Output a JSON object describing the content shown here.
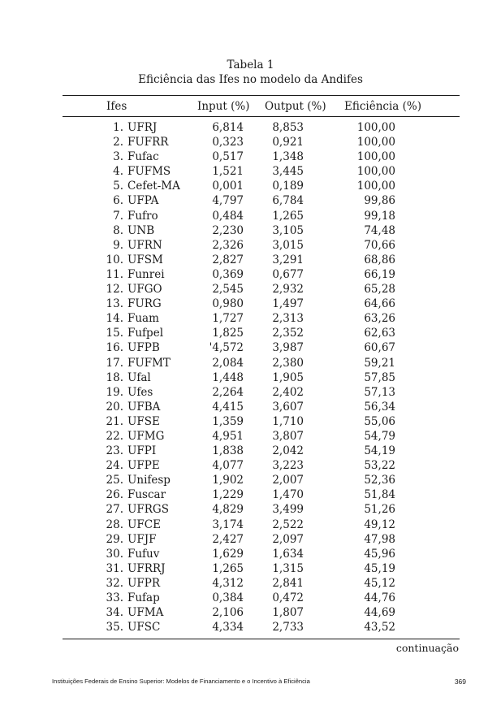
{
  "table": {
    "label": "Tabela 1",
    "title": "Eficiência das Ifes no modelo da Andifes",
    "headers": {
      "ifes": "Ifes",
      "input": "Input (%)",
      "output": "Output (%)",
      "eficiencia": "Eficiência (%)"
    },
    "rows": [
      {
        "n": "1.",
        "ifes": "UFRJ",
        "input": "6,814",
        "output": "8,853",
        "eficiencia": "100,00"
      },
      {
        "n": "2.",
        "ifes": "FUFRR",
        "input": "0,323",
        "output": "0,921",
        "eficiencia": "100,00"
      },
      {
        "n": "3.",
        "ifes": "Fufac",
        "input": "0,517",
        "output": "1,348",
        "eficiencia": "100,00"
      },
      {
        "n": "4.",
        "ifes": "FUFMS",
        "input": "1,521",
        "output": "3,445",
        "eficiencia": "100,00"
      },
      {
        "n": "5.",
        "ifes": "Cefet-MA",
        "input": "0,001",
        "output": "0,189",
        "eficiencia": "100,00"
      },
      {
        "n": "6.",
        "ifes": "UFPA",
        "input": "4,797",
        "output": "6,784",
        "eficiencia": "99,86"
      },
      {
        "n": "7.",
        "ifes": "Fufro",
        "input": "0,484",
        "output": "1,265",
        "eficiencia": "99,18"
      },
      {
        "n": "8.",
        "ifes": "UNB",
        "input": "2,230",
        "output": "3,105",
        "eficiencia": "74,48"
      },
      {
        "n": "9.",
        "ifes": "UFRN",
        "input": "2,326",
        "output": "3,015",
        "eficiencia": "70,66"
      },
      {
        "n": "10.",
        "ifes": "UFSM",
        "input": "2,827",
        "output": "3,291",
        "eficiencia": "68,86"
      },
      {
        "n": "11.",
        "ifes": "Funrei",
        "input": "0,369",
        "output": "0,677",
        "eficiencia": "66,19"
      },
      {
        "n": "12.",
        "ifes": "UFGO",
        "input": "2,545",
        "output": "2,932",
        "eficiencia": "65,28"
      },
      {
        "n": "13.",
        "ifes": "FURG",
        "input": "0,980",
        "output": "1,497",
        "eficiencia": "64,66"
      },
      {
        "n": "14.",
        "ifes": "Fuam",
        "input": "1,727",
        "output": "2,313",
        "eficiencia": "63,26"
      },
      {
        "n": "15.",
        "ifes": "Fufpel",
        "input": "1,825",
        "output": "2,352",
        "eficiencia": "62,63"
      },
      {
        "n": "16.",
        "ifes": "UFPB",
        "input": "'4,572",
        "output": "3,987",
        "eficiencia": "60,67"
      },
      {
        "n": "17.",
        "ifes": "FUFMT",
        "input": "2,084",
        "output": "2,380",
        "eficiencia": "59,21"
      },
      {
        "n": "18.",
        "ifes": "Ufal",
        "input": "1,448",
        "output": "1,905",
        "eficiencia": "57,85"
      },
      {
        "n": "19.",
        "ifes": "Ufes",
        "input": "2,264",
        "output": "2,402",
        "eficiencia": "57,13"
      },
      {
        "n": "20.",
        "ifes": "UFBA",
        "input": "4,415",
        "output": "3,607",
        "eficiencia": "56,34"
      },
      {
        "n": "21.",
        "ifes": "UFSE",
        "input": "1,359",
        "output": "1,710",
        "eficiencia": "55,06"
      },
      {
        "n": "22.",
        "ifes": "UFMG",
        "input": "4,951",
        "output": "3,807",
        "eficiencia": "54,79"
      },
      {
        "n": "23.",
        "ifes": "UFPI",
        "input": "1,838",
        "output": "2,042",
        "eficiencia": "54,19"
      },
      {
        "n": "24.",
        "ifes": "UFPE",
        "input": "4,077",
        "output": "3,223",
        "eficiencia": "53,22"
      },
      {
        "n": "25.",
        "ifes": "Unifesp",
        "input": "1,902",
        "output": "2,007",
        "eficiencia": "52,36"
      },
      {
        "n": "26.",
        "ifes": "Fuscar",
        "input": "1,229",
        "output": "1,470",
        "eficiencia": "51,84"
      },
      {
        "n": "27.",
        "ifes": "UFRGS",
        "input": "4,829",
        "output": "3,499",
        "eficiencia": "51,26"
      },
      {
        "n": "28.",
        "ifes": "UFCE",
        "input": "3,174",
        "output": "2,522",
        "eficiencia": "49,12"
      },
      {
        "n": "29.",
        "ifes": "UFJF",
        "input": "2,427",
        "output": "2,097",
        "eficiencia": "47,98"
      },
      {
        "n": "30.",
        "ifes": "Fufuv",
        "input": "1,629",
        "output": "1,634",
        "eficiencia": "45,96"
      },
      {
        "n": "31.",
        "ifes": "UFRRJ",
        "input": "1,265",
        "output": "1,315",
        "eficiencia": "45,19"
      },
      {
        "n": "32.",
        "ifes": "UFPR",
        "input": "4,312",
        "output": "2,841",
        "eficiencia": "45,12"
      },
      {
        "n": "33.",
        "ifes": "Fufap",
        "input": "0,384",
        "output": "0,472",
        "eficiencia": "44,76"
      },
      {
        "n": "34.",
        "ifes": "UFMA",
        "input": "2,106",
        "output": "1,807",
        "eficiencia": "44,69"
      },
      {
        "n": "35.",
        "ifes": "UFSC",
        "input": "4,334",
        "output": "2,733",
        "eficiencia": "43,52"
      }
    ],
    "continuation": "continuação"
  },
  "footer": {
    "text": "Instituições Federais de Ensino Superior: Modelos de Financiamento e o Incentivo à Eficiência",
    "page_number": "369"
  }
}
